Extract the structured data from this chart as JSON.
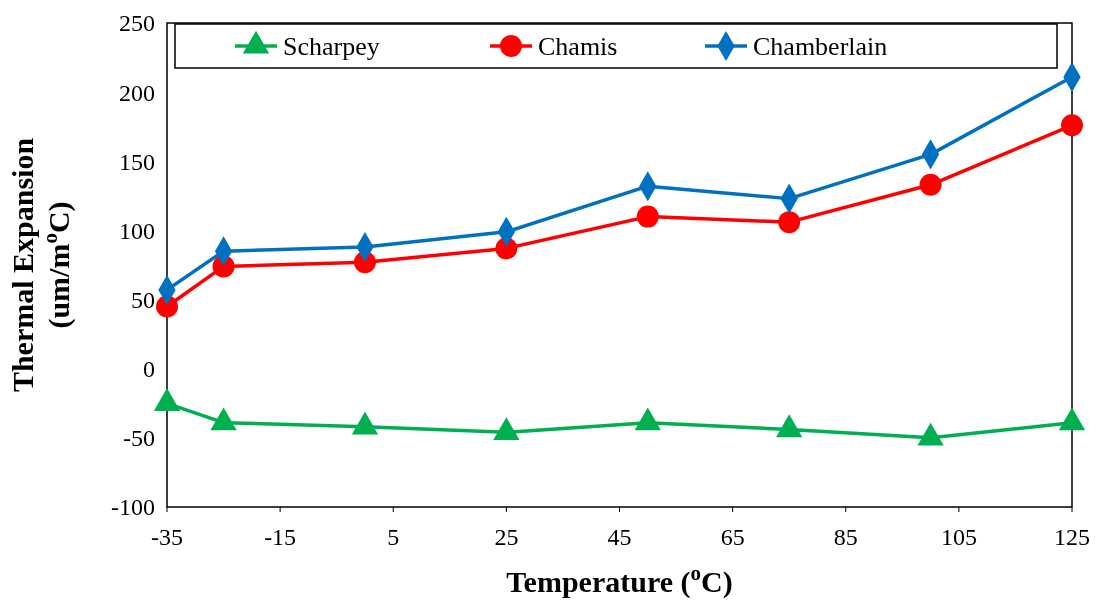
{
  "chart_data": {
    "type": "line",
    "xlabel": "Temperature ($^{o}$C)",
    "ylabel": "Thermal Expansion\n(um/m$^{o}$C)",
    "x": [
      -35,
      -25,
      0,
      25,
      50,
      75,
      100,
      125
    ],
    "xlim": [
      -35,
      125
    ],
    "xticks": [
      -35,
      -15,
      5,
      25,
      45,
      65,
      85,
      105,
      125
    ],
    "ylim": [
      -100,
      250
    ],
    "yticks": [
      -100,
      -50,
      0,
      50,
      100,
      150,
      200,
      250
    ],
    "legend": "top",
    "grid": false,
    "series": [
      {
        "name": "Scharpey",
        "color": "#00b050",
        "marker": "triangle",
        "values": [
          -25,
          -39,
          -42,
          -46,
          -39,
          -44,
          -50,
          -39
        ]
      },
      {
        "name": "Chamis",
        "color": "#ff0000",
        "marker": "circle",
        "values": [
          45,
          74,
          77,
          87,
          110,
          106,
          133,
          176
        ]
      },
      {
        "name": "Chamberlain",
        "color": "#0070c0",
        "marker": "diamond",
        "values": [
          57,
          85,
          88,
          99,
          132,
          123,
          155,
          211
        ]
      }
    ]
  }
}
